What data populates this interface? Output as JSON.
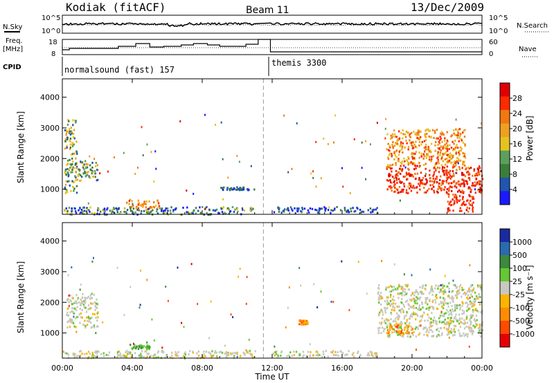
{
  "header": {
    "title": "Kodiak (fitACF)",
    "beam": "Beam 11",
    "date": "13/Dec/2009"
  },
  "top_panels": {
    "nsky_label": "N.Sky",
    "nsky_ticks": [
      "10^5",
      "10^0"
    ],
    "nsearch_label": "N.Search",
    "nsearch_ticks": [
      "10^5",
      "10^0"
    ],
    "freq_label": "Freq.",
    "freq_unit": "[MHz]",
    "freq_ticks": [
      "18",
      "8"
    ],
    "nave_label": "Nave",
    "nave_ticks": [
      "60",
      "0"
    ],
    "cpid_label": "CPID",
    "cpid_programs": [
      "normalsound (fast) 157",
      "themis 3300"
    ]
  },
  "colors": {
    "power": [
      "#1a1aff",
      "#2055b0",
      "#3c7d3c",
      "#5aa05a",
      "#e6c21e",
      "#f0a020",
      "#f07810",
      "#ff2a00",
      "#e00000"
    ],
    "velocity": [
      "#1a2aa0",
      "#2a6ab0",
      "#3c8a3c",
      "#64c832",
      "#c8c8c0",
      "#ffb400",
      "#ff8c00",
      "#ff4a00",
      "#e60000"
    ]
  },
  "chart_data": [
    {
      "type": "heatmap",
      "panel": "power",
      "xlabel": "",
      "ylabel": "Slant Range [km]",
      "x_ticks": [
        "00:00",
        "04:00",
        "08:00",
        "12:00",
        "16:00",
        "20:00",
        "00:00"
      ],
      "y_ticks": [
        "1000",
        "2000",
        "3000",
        "4000"
      ],
      "xlim_hours": [
        0,
        24
      ],
      "ylim_km": [
        180,
        4600
      ],
      "colorbar": {
        "label": "Power [dB]",
        "ticks": [
          "4",
          "8",
          "12",
          "16",
          "20",
          "24",
          "28"
        ],
        "range": [
          0,
          30
        ]
      },
      "data_gap_hours": [
        11.1,
        11.9
      ],
      "features": [
        {
          "t": [
            0.0,
            11.0
          ],
          "r": [
            200,
            450
          ],
          "level": "low-mid"
        },
        {
          "t": [
            0.1,
            0.8
          ],
          "r": [
            900,
            3300
          ],
          "level": "mid"
        },
        {
          "t": [
            0.8,
            2.0
          ],
          "r": [
            1300,
            2000
          ],
          "level": "mid"
        },
        {
          "t": [
            3.5,
            5.5
          ],
          "r": [
            400,
            700
          ],
          "level": "high"
        },
        {
          "t": [
            9.0,
            11.0
          ],
          "r": [
            1000,
            1100
          ],
          "level": "low"
        },
        {
          "t": [
            12.0,
            18.0
          ],
          "r": [
            250,
            450
          ],
          "level": "low"
        },
        {
          "t": [
            18.5,
            24.0
          ],
          "r": [
            900,
            1800
          ],
          "level": "very-high"
        },
        {
          "t": [
            18.5,
            23.0
          ],
          "r": [
            1800,
            3000
          ],
          "level": "high"
        },
        {
          "t": [
            22.0,
            23.5
          ],
          "r": [
            300,
            900
          ],
          "level": "very-high"
        }
      ]
    },
    {
      "type": "heatmap",
      "panel": "velocity",
      "xlabel": "Time UT",
      "ylabel": "Slant Range [km]",
      "x_ticks": [
        "00:00",
        "04:00",
        "08:00",
        "12:00",
        "16:00",
        "20:00",
        "00:00"
      ],
      "y_ticks": [
        "1000",
        "2000",
        "3000",
        "4000"
      ],
      "xlim_hours": [
        0,
        24
      ],
      "ylim_km": [
        180,
        4600
      ],
      "colorbar": {
        "label": "Velocity [m s⁻¹]",
        "ticks": [
          "1000",
          "500",
          "100",
          "25",
          "-25",
          "-100",
          "-500",
          "-1000"
        ]
      },
      "data_gap_hours": [
        11.1,
        11.9
      ],
      "features": [
        {
          "t": [
            0.0,
            11.0
          ],
          "r": [
            200,
            450
          ],
          "level": "ground"
        },
        {
          "t": [
            0.2,
            2.0
          ],
          "r": [
            1200,
            2300
          ],
          "level": "ground"
        },
        {
          "t": [
            3.8,
            5.0
          ],
          "r": [
            500,
            650
          ],
          "level": "weak-positive"
        },
        {
          "t": [
            12.0,
            18.0
          ],
          "r": [
            250,
            450
          ],
          "level": "ground"
        },
        {
          "t": [
            13.5,
            14.0
          ],
          "r": [
            1300,
            1450
          ],
          "level": "negative"
        },
        {
          "t": [
            18.0,
            24.0
          ],
          "r": [
            900,
            2600
          ],
          "level": "ground"
        },
        {
          "t": [
            18.5,
            20.0
          ],
          "r": [
            1000,
            1300
          ],
          "level": "negative"
        }
      ]
    }
  ]
}
